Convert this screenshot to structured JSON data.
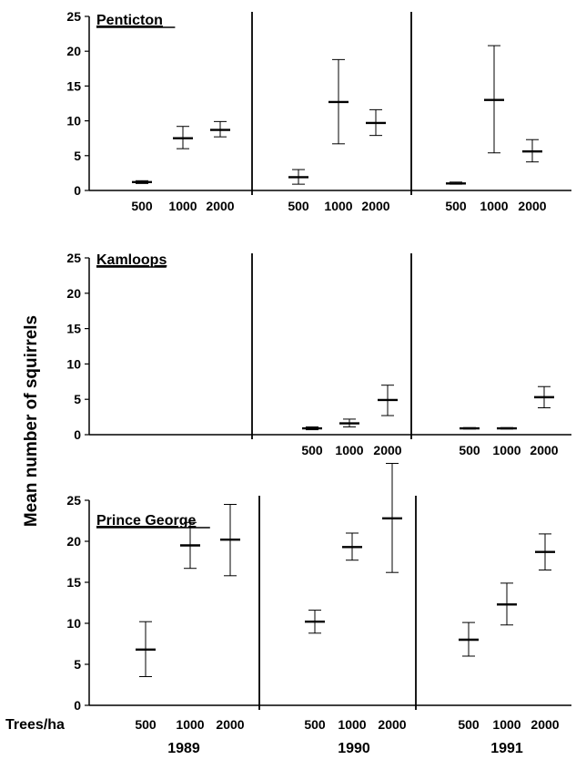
{
  "chart_data": [
    {
      "type": "scatter",
      "panel_title": "Penticton",
      "ylim": [
        0,
        25
      ],
      "yticks": [
        0,
        5,
        10,
        15,
        20,
        25
      ],
      "groups": [
        {
          "year": "1989",
          "categories": [
            "500",
            "1000",
            "2000"
          ],
          "mean": [
            1.2,
            7.5,
            8.7
          ],
          "err_low": [
            1.0,
            6.0,
            7.7
          ],
          "err_high": [
            1.4,
            9.2,
            9.9
          ]
        },
        {
          "year": "1990",
          "categories": [
            "500",
            "1000",
            "2000"
          ],
          "mean": [
            1.9,
            12.7,
            9.7
          ],
          "err_low": [
            0.9,
            6.7,
            7.9
          ],
          "err_high": [
            3.0,
            18.8,
            11.6
          ]
        },
        {
          "year": "1991",
          "categories": [
            "500",
            "1000",
            "2000"
          ],
          "mean": [
            1.0,
            13.0,
            5.6
          ],
          "err_low": [
            0.9,
            5.4,
            4.1
          ],
          "err_high": [
            1.2,
            20.8,
            7.3
          ]
        }
      ]
    },
    {
      "type": "scatter",
      "panel_title": "Kamloops",
      "ylim": [
        0,
        25
      ],
      "yticks": [
        0,
        5,
        10,
        15,
        20,
        25
      ],
      "groups": [
        {
          "year": "1989",
          "categories": [],
          "mean": [],
          "err_low": [],
          "err_high": []
        },
        {
          "year": "1990",
          "categories": [
            "500",
            "1000",
            "2000"
          ],
          "mean": [
            0.9,
            1.6,
            4.9
          ],
          "err_low": [
            0.7,
            1.1,
            2.7
          ],
          "err_high": [
            1.1,
            2.2,
            7.0
          ]
        },
        {
          "year": "1991",
          "categories": [
            "500",
            "1000",
            "2000"
          ],
          "mean": [
            0.9,
            0.9,
            5.3
          ],
          "err_low": [
            0.8,
            0.8,
            3.8
          ],
          "err_high": [
            1.0,
            1.0,
            6.8
          ]
        }
      ]
    },
    {
      "type": "scatter",
      "panel_title": "Prince George",
      "ylim": [
        0,
        25
      ],
      "yticks": [
        0,
        5,
        10,
        15,
        20,
        25
      ],
      "groups": [
        {
          "year": "1989",
          "categories": [
            "500",
            "1000",
            "2000"
          ],
          "mean": [
            6.8,
            19.5,
            20.2
          ],
          "err_low": [
            3.5,
            16.7,
            15.8
          ],
          "err_high": [
            10.2,
            22.3,
            24.5
          ]
        },
        {
          "year": "1990",
          "categories": [
            "500",
            "1000",
            "2000"
          ],
          "mean": [
            10.2,
            19.3,
            22.8
          ],
          "err_low": [
            8.8,
            17.7,
            16.2
          ],
          "err_high": [
            11.6,
            21.0,
            29.5
          ]
        },
        {
          "year": "1991",
          "categories": [
            "500",
            "1000",
            "2000"
          ],
          "mean": [
            8.0,
            12.3,
            18.7
          ],
          "err_low": [
            6.0,
            9.8,
            16.5
          ],
          "err_high": [
            10.1,
            14.9,
            20.9
          ]
        }
      ]
    }
  ],
  "ylabel": "Mean number of squirrels",
  "xlabel": "Trees/ha",
  "years": [
    "1989",
    "1990",
    "1991"
  ]
}
